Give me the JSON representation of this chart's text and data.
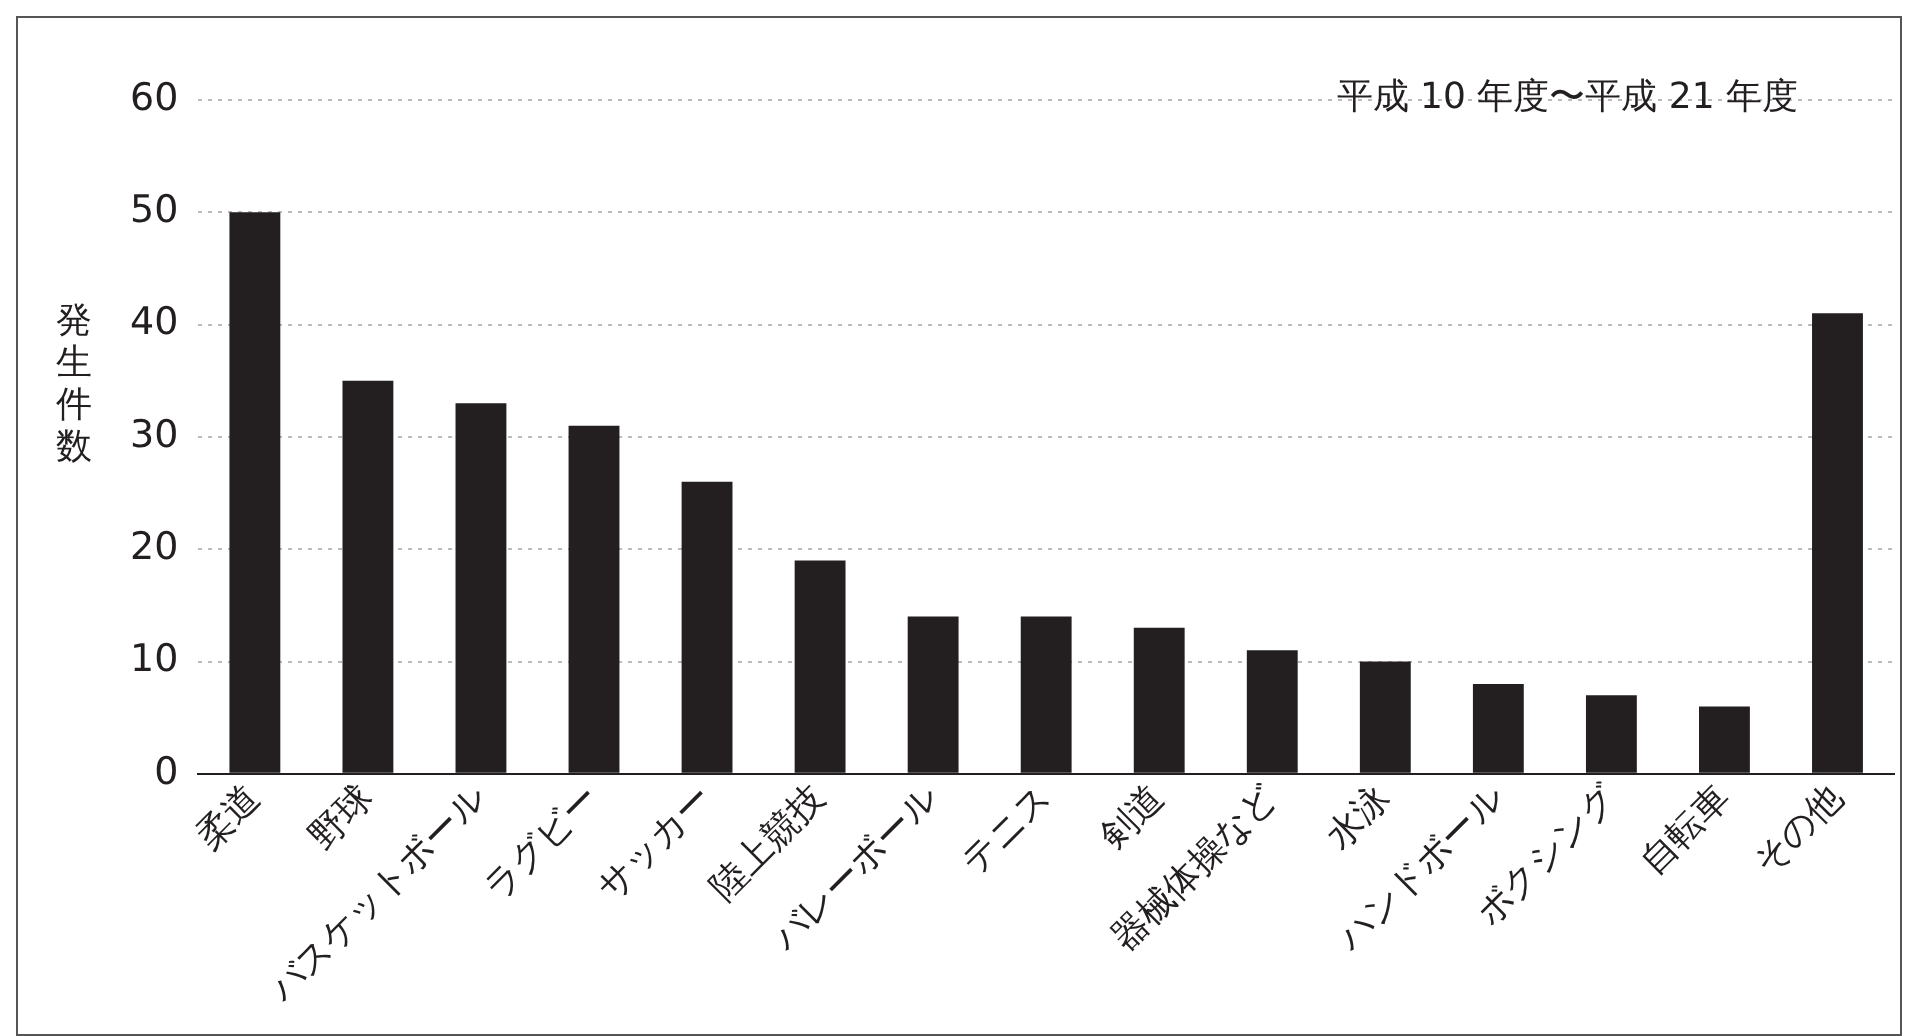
{
  "chart_data": {
    "type": "bar",
    "ylabel": "発生件数",
    "annotations": [
      "平成 10 年度〜平成 21 年度"
    ],
    "categories": [
      "柔道",
      "野球",
      "バスケットボール",
      "ラグビー",
      "サッカー",
      "陸上競技",
      "バレーボール",
      "テニス",
      "剣道",
      "器械体操など",
      "水泳",
      "ハンドボール",
      "ボクシング",
      "自転車",
      "その他"
    ],
    "values": [
      50,
      35,
      33,
      31,
      26,
      19,
      14,
      14,
      13,
      11,
      10,
      8,
      7,
      6,
      41
    ],
    "color": "#231f20",
    "ylim": [
      0,
      60
    ],
    "yticks": [
      0,
      10,
      20,
      30,
      40,
      50,
      60
    ],
    "grid": "y",
    "legend": false
  }
}
